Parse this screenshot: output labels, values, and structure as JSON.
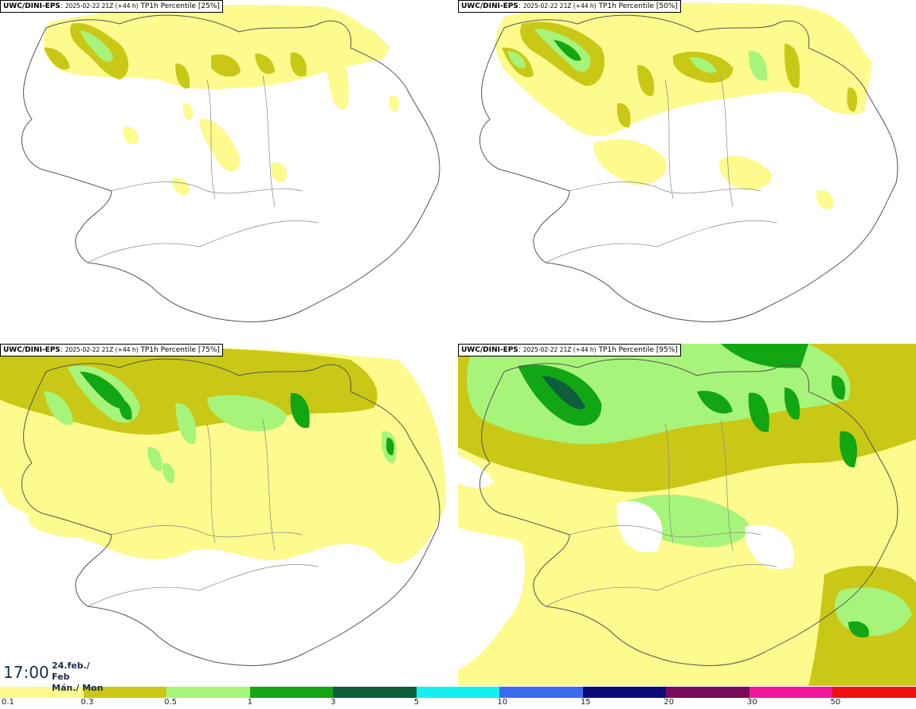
{
  "panels": [
    {
      "model": "UWC/DINI-EPS",
      "run": "2025-02-22 21Z (+44 h)",
      "field": "TP1h Percentile [25%]"
    },
    {
      "model": "UWC/DINI-EPS",
      "run": "2025-02-22 21Z (+44 h)",
      "field": "TP1h Percentile [50%]"
    },
    {
      "model": "UWC/DINI-EPS",
      "run": "2025-02-22 21Z (+44 h)",
      "field": "TP1h Percentile [75%]"
    },
    {
      "model": "UWC/DINI-EPS",
      "run": "2025-02-22 21Z (+44 h)",
      "field": "TP1h Percentile [95%]"
    }
  ],
  "valid_time": {
    "time": "17:00",
    "date_line1": "24.feb./ Feb",
    "date_line2": "Mán./ Mon"
  },
  "legend": {
    "colors": [
      "#fdfa8e",
      "#c9c816",
      "#a7f47a",
      "#13a613",
      "#0d5f3c",
      "#14f0f0",
      "#3b6cf0",
      "#0b0b7a",
      "#7a0b5a",
      "#f01898",
      "#f01010"
    ],
    "ticks": [
      "0.1",
      "0.3",
      "0.5",
      "1",
      "3",
      "5",
      "10",
      "15",
      "20",
      "30",
      "50"
    ]
  }
}
